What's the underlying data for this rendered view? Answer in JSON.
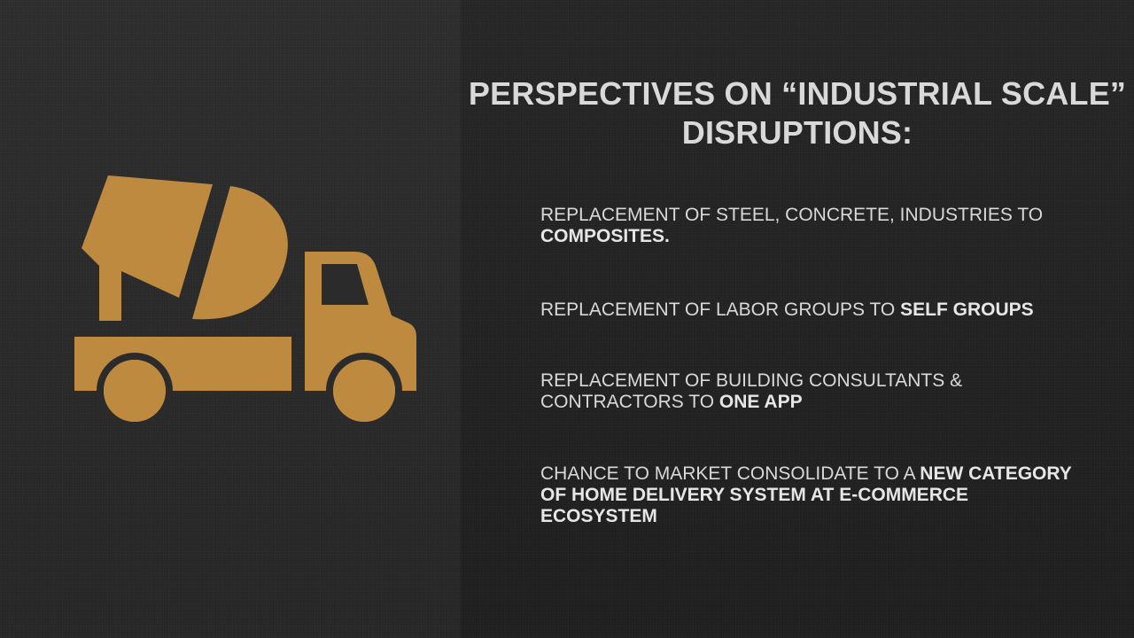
{
  "colors": {
    "icon": "#be8a3f",
    "text": "#d9d9d9"
  },
  "icon": "cement-mixer-truck-icon",
  "title": {
    "line1": "PERSPECTIVES ON “INDUSTRIAL SCALE”",
    "line2": "DISRUPTIONS:"
  },
  "bullets": [
    {
      "normal": "REPLACEMENT OF STEEL, CONCRETE, INDUSTRIES TO ",
      "bold": "COMPOSITES."
    },
    {
      "normal": "REPLACEMENT OF LABOR GROUPS TO ",
      "bold": "SELF GROUPS"
    },
    {
      "normal": "REPLACEMENT OF BUILDING CONSULTANTS & CONTRACTORS TO ",
      "bold": "ONE APP"
    },
    {
      "normal": "CHANCE TO MARKET CONSOLIDATE TO A ",
      "bold": "NEW CATEGORY OF HOME DELIVERY SYSTEM AT E-COMMERCE ECOSYSTEM"
    }
  ]
}
